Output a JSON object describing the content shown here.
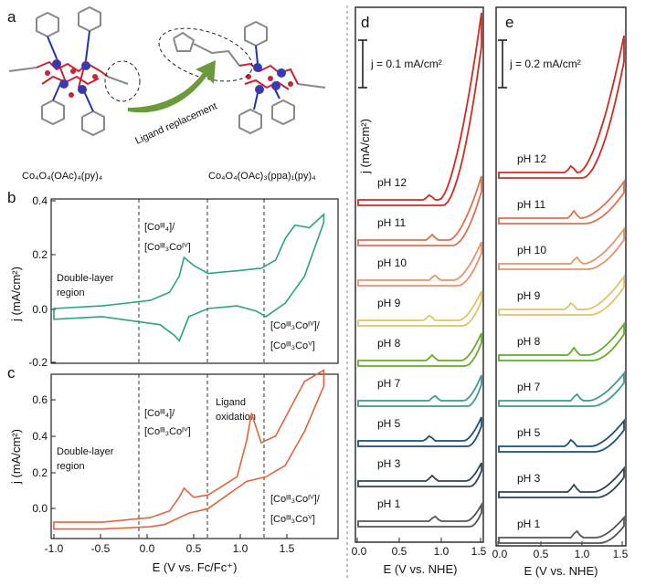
{
  "panel_labels": {
    "a": "a",
    "b": "b",
    "c": "c",
    "d": "d",
    "e": "e"
  },
  "panel_a": {
    "left_formula": "Co₄O₄(OAc)₄(py)₄",
    "right_formula": "Co₄O₄(OAc)₃(ppa)₁(py)₄",
    "arrow_label": "Ligand replacement"
  },
  "panel_b": {
    "ylabel": "j (mA/cm²)",
    "region_label": [
      "Double-layer",
      "region"
    ],
    "ann_left": [
      "[Coᴵᴵᴵ₄]/",
      "[Coᴵᴵᴵ₃Coᴵⱽ]"
    ],
    "ann_right": [
      "[Coᴵᴵᴵ₃Coᴵⱽ]/",
      "[Coᴵᴵᴵ₃Coⱽ]"
    ],
    "yticks": [
      "0.4",
      "0.2",
      "0.0",
      "-0.2"
    ]
  },
  "panel_c": {
    "ylabel": "j (mA/cm²)",
    "xlabel": "E (V vs. Fc/Fc⁺)",
    "region_label": [
      "Double-layer",
      "region"
    ],
    "ann_left": [
      "[Coᴵᴵᴵ₄]/",
      "[Coᴵᴵᴵ₃Coᴵⱽ]"
    ],
    "ann_mid": [
      "Ligand",
      "oxidation"
    ],
    "ann_right": [
      "[Coᴵᴵᴵ₃Coᴵⱽ]/",
      "[Coᴵᴵᴵ₃Coⱽ]"
    ],
    "yticks": [
      "0.6",
      "0.4",
      "0.2",
      "0.0"
    ],
    "xticks": [
      "-1.0",
      "-0.5",
      "0.0",
      "0.5",
      "1.0",
      "1.5"
    ]
  },
  "panel_d": {
    "scale": "j = 0.1 mA/cm²",
    "ylabel": "j (mA/cm²)",
    "xlabel": "E (V vs. NHE)",
    "xticks": [
      "0.0",
      "0.5",
      "1.0",
      "1.5"
    ],
    "ph_labels": [
      "pH 12",
      "pH 11",
      "pH 10",
      "pH 9",
      "pH 8",
      "pH 7",
      "pH 5",
      "pH 3",
      "pH 1"
    ]
  },
  "panel_e": {
    "scale": "j = 0.2 mA/cm²",
    "xlabel": "E (V vs. NHE)",
    "xticks": [
      "0.0",
      "0.5",
      "1.0",
      "1.5"
    ],
    "ph_labels": [
      "pH 12",
      "pH 11",
      "pH 10",
      "pH 9",
      "pH 8",
      "pH 7",
      "pH 5",
      "pH 3",
      "pH 1"
    ]
  },
  "colors": {
    "cv_b": "#2aa383",
    "cv_c": "#e0653a",
    "ph": [
      "#cf2b22",
      "#e06f50",
      "#e8926a",
      "#e0c36a",
      "#66ad2c",
      "#3f9a8f",
      "#1d4f78",
      "#2d4652",
      "#555555"
    ]
  },
  "chart_data": [
    {
      "type": "line",
      "panel": "b",
      "ylabel": "j (mA/cm²)",
      "xlim": [
        -1.0,
        1.9
      ],
      "ylim": [
        -0.2,
        0.4
      ],
      "series": [
        {
          "x": [
            -1.0,
            -0.5,
            0.0,
            0.2,
            0.3,
            0.35,
            0.45,
            0.6,
            0.9,
            1.15,
            1.3,
            1.4,
            1.5,
            1.65,
            1.8
          ],
          "y": [
            0.0,
            0.01,
            0.03,
            0.06,
            0.12,
            0.19,
            0.16,
            0.13,
            0.14,
            0.15,
            0.18,
            0.26,
            0.31,
            0.3,
            0.35
          ]
        },
        {
          "x": [
            1.8,
            1.6,
            1.4,
            1.2,
            1.1,
            0.9,
            0.6,
            0.4,
            0.3,
            0.25,
            0.1,
            -0.5,
            -1.0
          ],
          "y": [
            0.32,
            0.12,
            0.02,
            -0.03,
            -0.01,
            0.01,
            0.0,
            -0.03,
            -0.12,
            -0.1,
            -0.06,
            -0.03,
            -0.04
          ]
        }
      ]
    },
    {
      "type": "line",
      "panel": "c",
      "xlabel": "E (V vs. Fc/Fc⁺)",
      "ylabel": "j (mA/cm²)",
      "xlim": [
        -1.0,
        1.9
      ],
      "ylim": [
        -0.1,
        0.7
      ],
      "series": [
        {
          "x": [
            -1.0,
            -0.5,
            0.0,
            0.2,
            0.3,
            0.35,
            0.45,
            0.6,
            0.9,
            1.0,
            1.05,
            1.15,
            1.3,
            1.45,
            1.6,
            1.8
          ],
          "y": [
            0.0,
            0.0,
            0.02,
            0.05,
            0.11,
            0.15,
            0.11,
            0.12,
            0.2,
            0.36,
            0.48,
            0.35,
            0.38,
            0.5,
            0.62,
            0.67
          ]
        },
        {
          "x": [
            1.8,
            1.6,
            1.4,
            1.2,
            1.0,
            0.8,
            0.6,
            0.4,
            0.25,
            0.15,
            0.0,
            -0.5,
            -1.0
          ],
          "y": [
            0.6,
            0.4,
            0.25,
            0.2,
            0.18,
            0.12,
            0.06,
            0.04,
            0.01,
            -0.01,
            -0.02,
            -0.03,
            -0.03
          ]
        }
      ]
    },
    {
      "type": "line",
      "panel": "d",
      "xlabel": "E (V vs. NHE)",
      "xticks": [
        "0.0",
        "0.5",
        "1.0",
        "1.5"
      ],
      "series_names": [
        "pH 12",
        "pH 11",
        "pH 10",
        "pH 9",
        "pH 8",
        "pH 7",
        "pH 5",
        "pH 3",
        "pH 1"
      ]
    },
    {
      "type": "line",
      "panel": "e",
      "xlabel": "E (V vs. NHE)",
      "xticks": [
        "0.0",
        "0.5",
        "1.0",
        "1.5"
      ],
      "series_names": [
        "pH 12",
        "pH 11",
        "pH 10",
        "pH 9",
        "pH 8",
        "pH 7",
        "pH 5",
        "pH 3",
        "pH 1"
      ]
    }
  ]
}
